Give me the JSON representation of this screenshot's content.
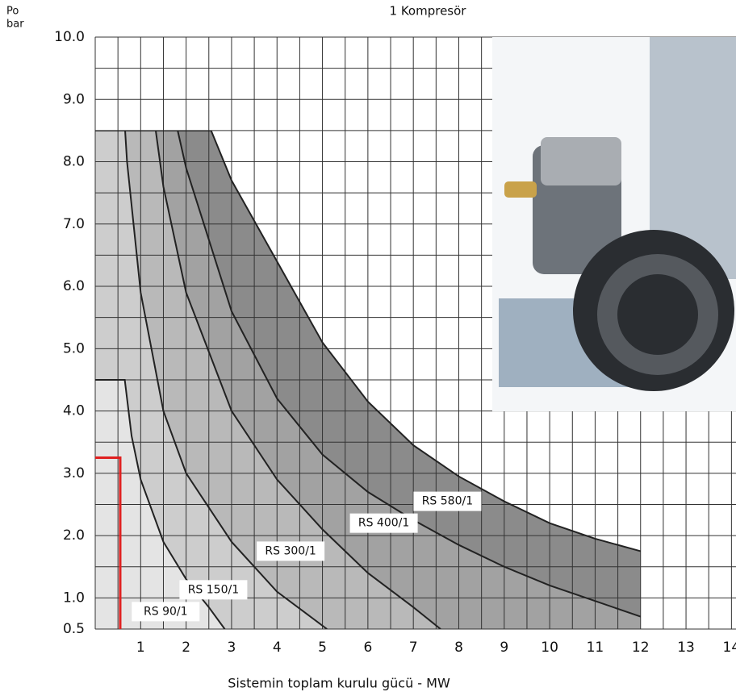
{
  "chart_data": {
    "type": "area-line",
    "title": "1 Kompresör",
    "x_label": "Sistemin toplam kurulu gücü - MW",
    "y_label_lines": [
      "Po",
      "bar"
    ],
    "xlim": [
      0,
      14.1
    ],
    "ylim": [
      0.5,
      10
    ],
    "xticks": [
      1,
      2,
      3,
      4,
      5,
      6,
      7,
      8,
      9,
      10,
      11,
      12,
      13,
      14
    ],
    "yticks": [
      0.5,
      {
        "value": 1,
        "label": "1.0"
      },
      {
        "value": 2,
        "label": "2.0"
      },
      {
        "value": 3,
        "label": "3.0"
      },
      {
        "value": 4,
        "label": "4.0"
      },
      {
        "value": 5,
        "label": "5.0"
      },
      {
        "value": 6,
        "label": "6.0"
      },
      {
        "value": 7,
        "label": "7.0"
      },
      {
        "value": 8,
        "label": "8.0"
      },
      {
        "value": 9,
        "label": "9.0"
      },
      {
        "value": 10,
        "label": "10.0"
      }
    ],
    "grid": true,
    "grid_step": 0.5,
    "series": [
      {
        "name": "RS 90/1",
        "color": "#e4e4e4",
        "x": [
          0,
          0.65,
          0.8,
          1.0,
          1.5,
          2.0,
          2.5,
          2.85
        ],
        "values": [
          4.5,
          4.5,
          3.6,
          2.9,
          1.9,
          1.3,
          0.85,
          0.5
        ]
      },
      {
        "name": "RS 150/1",
        "color": "#cdcdcd",
        "x": [
          0.53,
          0.7,
          1,
          1.5,
          2,
          3,
          4,
          5.1
        ],
        "values": [
          10,
          8,
          5.9,
          4.0,
          3.0,
          1.9,
          1.1,
          0.5
        ]
      },
      {
        "name": "RS 300/1",
        "color": "#b9b9b9",
        "x": [
          1.05,
          1.5,
          2,
          3,
          4,
          5,
          6,
          7,
          7.6
        ],
        "values": [
          10,
          7.6,
          5.9,
          4.0,
          2.9,
          2.1,
          1.4,
          0.85,
          0.5
        ]
      },
      {
        "name": "RS 400/1",
        "color": "#a2a2a2",
        "x": [
          1.35,
          2,
          3,
          4,
          5,
          6,
          7,
          8,
          9,
          10,
          11,
          12
        ],
        "values": [
          10,
          7.9,
          5.6,
          4.2,
          3.3,
          2.7,
          2.25,
          1.85,
          1.5,
          1.2,
          0.95,
          0.7
        ]
      },
      {
        "name": "RS 580/1",
        "color": "#8b8b8b",
        "x": [
          0,
          2.55,
          3,
          4,
          5,
          6,
          7,
          8,
          9,
          10,
          11,
          12
        ],
        "values": [
          8.5,
          8.5,
          7.7,
          6.4,
          5.1,
          4.15,
          3.45,
          2.95,
          2.55,
          2.2,
          1.95,
          1.75
        ]
      }
    ],
    "marker": {
      "x": 0.55,
      "y": 3.25,
      "color": "#e02020"
    }
  }
}
